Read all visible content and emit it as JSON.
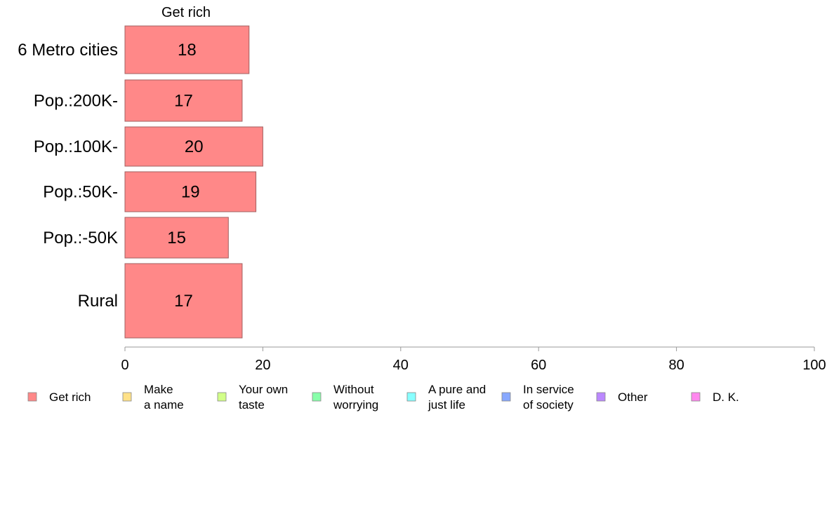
{
  "chart_data": {
    "type": "bar",
    "orientation": "horizontal",
    "stacked": true,
    "column_header": "Get rich",
    "categories": [
      "6 Metro cities",
      "Pop.:200K-",
      "Pop.:100K-",
      "Pop.:50K-",
      "Pop.:-50K",
      "Rural"
    ],
    "series": [
      {
        "name": "Get rich",
        "values": [
          18,
          17,
          20,
          19,
          15,
          17
        ]
      }
    ],
    "xlim": [
      0,
      100
    ],
    "xticks": [
      0,
      20,
      40,
      60,
      80,
      100
    ],
    "grid": false,
    "legend_position": "bottom",
    "legend": [
      {
        "lines": [
          "Get rich"
        ],
        "color": "#ff8888"
      },
      {
        "lines": [
          "Make",
          "a name"
        ],
        "color": "#ffe188"
      },
      {
        "lines": [
          "Your own",
          "taste"
        ],
        "color": "#d2ff88"
      },
      {
        "lines": [
          "Without",
          "worrying"
        ],
        "color": "#88ffaa"
      },
      {
        "lines": [
          "A pure and",
          "just life"
        ],
        "color": "#88ffff"
      },
      {
        "lines": [
          "In service",
          "of society"
        ],
        "color": "#88a8ff"
      },
      {
        "lines": [
          "Other"
        ],
        "color": "#bb88ff"
      },
      {
        "lines": [
          "D. K."
        ],
        "color": "#ff88ee"
      }
    ],
    "colors": {
      "bar_fill": "#ff8888",
      "bar_stroke": "#a06060",
      "axis": "#999999"
    }
  }
}
